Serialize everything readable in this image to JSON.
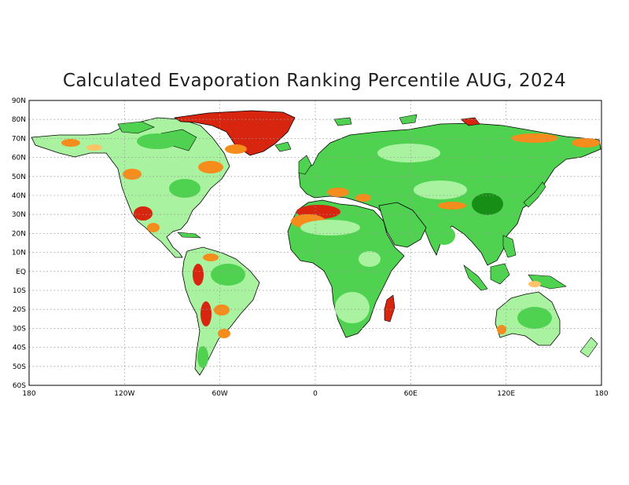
{
  "title": "Calculated Evaporation Ranking Percentile AUG, 2024",
  "lat_labels": [
    "90N",
    "80N",
    "70N",
    "60N",
    "50N",
    "40N",
    "30N",
    "20N",
    "10N",
    "EQ",
    "10S",
    "20S",
    "30S",
    "40S",
    "50S",
    "60S"
  ],
  "lon_labels": [
    "180",
    "120W",
    "60W",
    "0",
    "60E",
    "120E",
    "180"
  ],
  "axes": {
    "lon_range": [
      -180,
      180
    ],
    "lat_range": [
      -60,
      90
    ],
    "grid": true,
    "grid_style": "dotted"
  },
  "colors": {
    "dark_red": "#d8250f",
    "orange": "#f58c1c",
    "light_orange": "#fcc466",
    "light_green": "#a8f2a0",
    "green": "#4fd24f",
    "dark_green": "#178f17",
    "coast": "#000000",
    "grid": "#9a9a9a"
  }
}
